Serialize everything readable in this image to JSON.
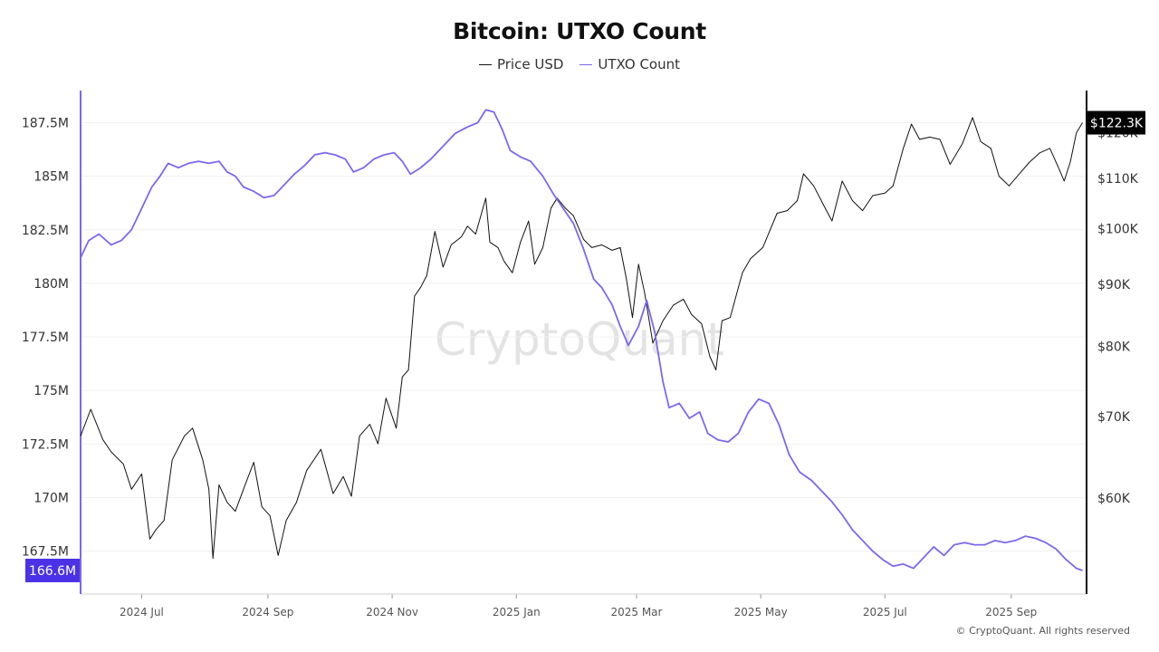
{
  "chart_data": {
    "type": "line",
    "title": "Bitcoin: UTXO Count",
    "legend_position": "top-center",
    "grid": true,
    "watermark": "CryptoQuant",
    "x_ticks": [
      "2024 Jul",
      "2024 Sep",
      "2024 Nov",
      "2025 Jan",
      "2025 Mar",
      "2025 May",
      "2025 Jul",
      "2025 Sep"
    ],
    "x_range": [
      "2024-06-01",
      "2025-10-08"
    ],
    "left_axis": {
      "ticks": [
        167.5,
        170,
        172.5,
        175,
        177.5,
        180,
        182.5,
        185,
        187.5
      ],
      "tick_labels": [
        "167.5M",
        "170M",
        "172.5M",
        "175M",
        "177.5M",
        "180M",
        "182.5M",
        "185M",
        "187.5M"
      ],
      "range": [
        165.5,
        189.0
      ],
      "current_value_label": "166.6M",
      "color": "#7b68ee"
    },
    "right_axis": {
      "scale": "log",
      "ticks": [
        60000,
        70000,
        80000,
        90000,
        100000,
        110000,
        120000
      ],
      "tick_labels": [
        "$60K",
        "$70K",
        "$80K",
        "$90K",
        "$100K",
        "$110K",
        "$120K"
      ],
      "range": [
        50000,
        130000
      ],
      "current_value_label": "$122.3K",
      "color": "#111111"
    },
    "series": [
      {
        "name": "Price USD",
        "axis": "right",
        "color": "#111111",
        "points": [
          [
            "2024-06-01",
            67500
          ],
          [
            "2024-06-06",
            71000
          ],
          [
            "2024-06-12",
            67000
          ],
          [
            "2024-06-16",
            65500
          ],
          [
            "2024-06-22",
            64000
          ],
          [
            "2024-06-26",
            61000
          ],
          [
            "2024-07-01",
            62800
          ],
          [
            "2024-07-05",
            55500
          ],
          [
            "2024-07-08",
            56500
          ],
          [
            "2024-07-12",
            57500
          ],
          [
            "2024-07-16",
            64500
          ],
          [
            "2024-07-22",
            67500
          ],
          [
            "2024-07-26",
            68500
          ],
          [
            "2024-07-31",
            64500
          ],
          [
            "2024-08-03",
            61000
          ],
          [
            "2024-08-05",
            53500
          ],
          [
            "2024-08-08",
            61500
          ],
          [
            "2024-08-12",
            59500
          ],
          [
            "2024-08-16",
            58500
          ],
          [
            "2024-08-20",
            61000
          ],
          [
            "2024-08-25",
            64200
          ],
          [
            "2024-08-29",
            59000
          ],
          [
            "2024-09-02",
            58000
          ],
          [
            "2024-09-06",
            53800
          ],
          [
            "2024-09-10",
            57500
          ],
          [
            "2024-09-15",
            59500
          ],
          [
            "2024-09-20",
            63200
          ],
          [
            "2024-09-27",
            65800
          ],
          [
            "2024-10-03",
            60500
          ],
          [
            "2024-10-08",
            62500
          ],
          [
            "2024-10-12",
            60200
          ],
          [
            "2024-10-16",
            67500
          ],
          [
            "2024-10-21",
            69000
          ],
          [
            "2024-10-25",
            66500
          ],
          [
            "2024-10-29",
            72500
          ],
          [
            "2024-11-03",
            68500
          ],
          [
            "2024-11-06",
            75500
          ],
          [
            "2024-11-09",
            76500
          ],
          [
            "2024-11-12",
            88000
          ],
          [
            "2024-11-15",
            89500
          ],
          [
            "2024-11-18",
            91500
          ],
          [
            "2024-11-22",
            99500
          ],
          [
            "2024-11-26",
            93000
          ],
          [
            "2024-11-30",
            97000
          ],
          [
            "2024-12-05",
            98500
          ],
          [
            "2024-12-08",
            100500
          ],
          [
            "2024-12-12",
            99000
          ],
          [
            "2024-12-17",
            106000
          ],
          [
            "2024-12-19",
            97500
          ],
          [
            "2024-12-23",
            96500
          ],
          [
            "2024-12-26",
            94000
          ],
          [
            "2024-12-30",
            92000
          ],
          [
            "2025-01-03",
            97500
          ],
          [
            "2025-01-07",
            101500
          ],
          [
            "2025-01-10",
            93500
          ],
          [
            "2025-01-14",
            96500
          ],
          [
            "2025-01-18",
            104000
          ],
          [
            "2025-01-21",
            106000
          ],
          [
            "2025-01-25",
            104000
          ],
          [
            "2025-01-29",
            102500
          ],
          [
            "2025-02-03",
            98000
          ],
          [
            "2025-02-07",
            96500
          ],
          [
            "2025-02-12",
            97000
          ],
          [
            "2025-02-17",
            96000
          ],
          [
            "2025-02-21",
            96500
          ],
          [
            "2025-02-24",
            91000
          ],
          [
            "2025-02-27",
            84500
          ],
          [
            "2025-03-02",
            93500
          ],
          [
            "2025-03-05",
            88500
          ],
          [
            "2025-03-09",
            80500
          ],
          [
            "2025-03-14",
            84000
          ],
          [
            "2025-03-19",
            86500
          ],
          [
            "2025-03-24",
            87500
          ],
          [
            "2025-03-28",
            85000
          ],
          [
            "2025-04-02",
            83500
          ],
          [
            "2025-04-06",
            78500
          ],
          [
            "2025-04-09",
            76500
          ],
          [
            "2025-04-12",
            84000
          ],
          [
            "2025-04-16",
            84500
          ],
          [
            "2025-04-22",
            92000
          ],
          [
            "2025-04-26",
            94500
          ],
          [
            "2025-05-02",
            96500
          ],
          [
            "2025-05-09",
            103000
          ],
          [
            "2025-05-14",
            103500
          ],
          [
            "2025-05-19",
            105500
          ],
          [
            "2025-05-22",
            111000
          ],
          [
            "2025-05-27",
            108500
          ],
          [
            "2025-06-01",
            104500
          ],
          [
            "2025-06-05",
            101500
          ],
          [
            "2025-06-10",
            109500
          ],
          [
            "2025-06-15",
            105500
          ],
          [
            "2025-06-20",
            103500
          ],
          [
            "2025-06-25",
            106500
          ],
          [
            "2025-07-01",
            107000
          ],
          [
            "2025-07-05",
            108500
          ],
          [
            "2025-07-10",
            116500
          ],
          [
            "2025-07-14",
            122000
          ],
          [
            "2025-07-18",
            118500
          ],
          [
            "2025-07-23",
            119000
          ],
          [
            "2025-07-28",
            118500
          ],
          [
            "2025-08-02",
            113000
          ],
          [
            "2025-08-08",
            117500
          ],
          [
            "2025-08-13",
            123500
          ],
          [
            "2025-08-17",
            118000
          ],
          [
            "2025-08-22",
            116500
          ],
          [
            "2025-08-26",
            110500
          ],
          [
            "2025-08-31",
            108500
          ],
          [
            "2025-09-05",
            111000
          ],
          [
            "2025-09-10",
            113500
          ],
          [
            "2025-09-15",
            115500
          ],
          [
            "2025-09-20",
            116500
          ],
          [
            "2025-09-24",
            112500
          ],
          [
            "2025-09-27",
            109500
          ],
          [
            "2025-09-30",
            113500
          ],
          [
            "2025-10-03",
            120000
          ],
          [
            "2025-10-06",
            122300
          ]
        ]
      },
      {
        "name": "UTXO Count",
        "axis": "left",
        "color": "#7b68ee",
        "points": [
          [
            "2024-06-01",
            181.2
          ],
          [
            "2024-06-05",
            182.0
          ],
          [
            "2024-06-10",
            182.3
          ],
          [
            "2024-06-16",
            181.8
          ],
          [
            "2024-06-21",
            182.0
          ],
          [
            "2024-06-26",
            182.5
          ],
          [
            "2024-07-01",
            183.5
          ],
          [
            "2024-07-06",
            184.5
          ],
          [
            "2024-07-10",
            185.0
          ],
          [
            "2024-07-14",
            185.6
          ],
          [
            "2024-07-19",
            185.4
          ],
          [
            "2024-07-24",
            185.6
          ],
          [
            "2024-07-29",
            185.7
          ],
          [
            "2024-08-03",
            185.6
          ],
          [
            "2024-08-08",
            185.7
          ],
          [
            "2024-08-12",
            185.2
          ],
          [
            "2024-08-16",
            185.0
          ],
          [
            "2024-08-20",
            184.5
          ],
          [
            "2024-08-25",
            184.3
          ],
          [
            "2024-08-30",
            184.0
          ],
          [
            "2024-09-04",
            184.1
          ],
          [
            "2024-09-09",
            184.6
          ],
          [
            "2024-09-14",
            185.1
          ],
          [
            "2024-09-19",
            185.5
          ],
          [
            "2024-09-24",
            186.0
          ],
          [
            "2024-09-29",
            186.1
          ],
          [
            "2024-10-04",
            186.0
          ],
          [
            "2024-10-09",
            185.8
          ],
          [
            "2024-10-13",
            185.2
          ],
          [
            "2024-10-18",
            185.4
          ],
          [
            "2024-10-23",
            185.8
          ],
          [
            "2024-10-28",
            186.0
          ],
          [
            "2024-11-02",
            186.1
          ],
          [
            "2024-11-06",
            185.7
          ],
          [
            "2024-11-10",
            185.1
          ],
          [
            "2024-11-15",
            185.4
          ],
          [
            "2024-11-20",
            185.8
          ],
          [
            "2024-11-24",
            186.2
          ],
          [
            "2024-11-28",
            186.6
          ],
          [
            "2024-12-02",
            187.0
          ],
          [
            "2024-12-08",
            187.3
          ],
          [
            "2024-12-13",
            187.5
          ],
          [
            "2024-12-17",
            188.1
          ],
          [
            "2024-12-21",
            188.0
          ],
          [
            "2024-12-25",
            187.2
          ],
          [
            "2024-12-29",
            186.2
          ],
          [
            "2025-01-03",
            185.9
          ],
          [
            "2025-01-08",
            185.7
          ],
          [
            "2025-01-14",
            185.0
          ],
          [
            "2025-01-19",
            184.2
          ],
          [
            "2025-01-24",
            183.5
          ],
          [
            "2025-01-29",
            182.8
          ],
          [
            "2025-02-03",
            181.6
          ],
          [
            "2025-02-08",
            180.2
          ],
          [
            "2025-02-12",
            179.8
          ],
          [
            "2025-02-17",
            179.0
          ],
          [
            "2025-02-21",
            178.0
          ],
          [
            "2025-02-25",
            177.1
          ],
          [
            "2025-03-02",
            178.0
          ],
          [
            "2025-03-06",
            179.2
          ],
          [
            "2025-03-10",
            177.7
          ],
          [
            "2025-03-14",
            175.4
          ],
          [
            "2025-03-17",
            174.2
          ],
          [
            "2025-03-22",
            174.4
          ],
          [
            "2025-03-27",
            173.7
          ],
          [
            "2025-04-01",
            174.0
          ],
          [
            "2025-04-05",
            173.0
          ],
          [
            "2025-04-10",
            172.7
          ],
          [
            "2025-04-15",
            172.6
          ],
          [
            "2025-04-20",
            173.0
          ],
          [
            "2025-04-25",
            174.0
          ],
          [
            "2025-04-30",
            174.6
          ],
          [
            "2025-05-05",
            174.4
          ],
          [
            "2025-05-10",
            173.4
          ],
          [
            "2025-05-15",
            172.0
          ],
          [
            "2025-05-20",
            171.2
          ],
          [
            "2025-05-26",
            170.8
          ],
          [
            "2025-05-31",
            170.3
          ],
          [
            "2025-06-05",
            169.8
          ],
          [
            "2025-06-10",
            169.2
          ],
          [
            "2025-06-15",
            168.5
          ],
          [
            "2025-06-20",
            168.0
          ],
          [
            "2025-06-25",
            167.5
          ],
          [
            "2025-06-30",
            167.1
          ],
          [
            "2025-07-05",
            166.8
          ],
          [
            "2025-07-10",
            166.9
          ],
          [
            "2025-07-15",
            166.7
          ],
          [
            "2025-07-20",
            167.2
          ],
          [
            "2025-07-25",
            167.7
          ],
          [
            "2025-07-30",
            167.3
          ],
          [
            "2025-08-04",
            167.8
          ],
          [
            "2025-08-09",
            167.9
          ],
          [
            "2025-08-14",
            167.8
          ],
          [
            "2025-08-19",
            167.8
          ],
          [
            "2025-08-24",
            168.0
          ],
          [
            "2025-08-29",
            167.9
          ],
          [
            "2025-09-03",
            168.0
          ],
          [
            "2025-09-08",
            168.2
          ],
          [
            "2025-09-13",
            168.1
          ],
          [
            "2025-09-18",
            167.9
          ],
          [
            "2025-09-23",
            167.6
          ],
          [
            "2025-09-28",
            167.1
          ],
          [
            "2025-10-03",
            166.7
          ],
          [
            "2025-10-06",
            166.6
          ]
        ]
      }
    ]
  },
  "copyright": "© CryptoQuant. All rights reserved"
}
